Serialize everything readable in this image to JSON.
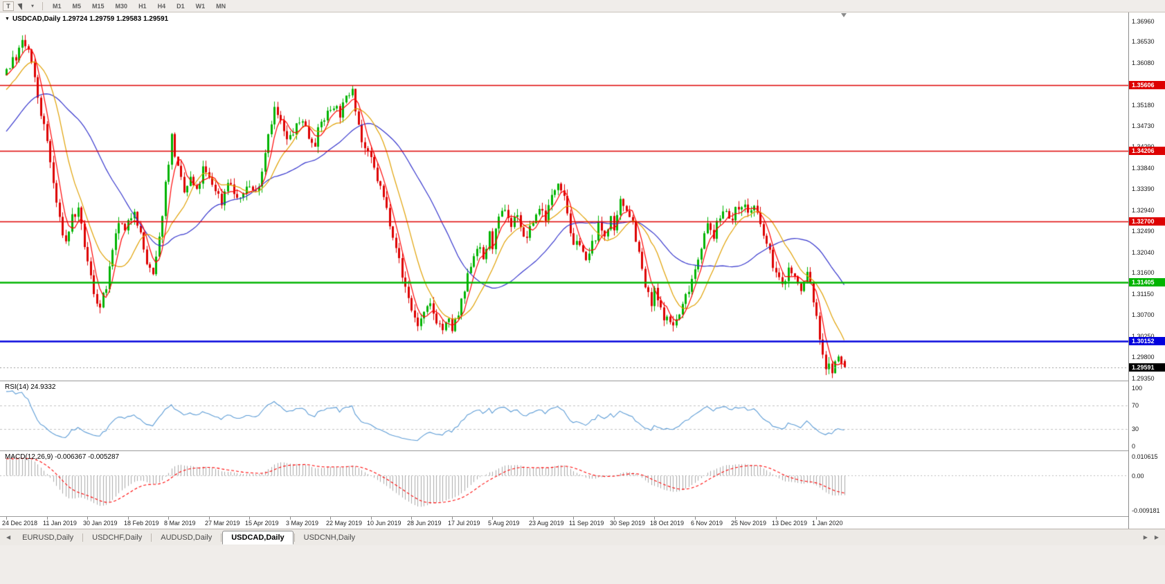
{
  "toolbar": {
    "text_tool_label": "T",
    "dropdown_caret": "▾",
    "timeframes": [
      "M1",
      "M5",
      "M15",
      "M30",
      "H1",
      "H4",
      "D1",
      "W1",
      "MN"
    ],
    "active_timeframe": "D1"
  },
  "chart": {
    "menu_caret": "▼",
    "title": "USDCAD,Daily 1.29724 1.29759 1.29583 1.29591",
    "symbol": "USDCAD",
    "period": "Daily",
    "open": "1.29724",
    "high": "1.29759",
    "low": "1.29583",
    "close": "1.29591"
  },
  "panes": {
    "rsi_label": "RSI(14) 24.9332",
    "macd_label": "MACD(12,26,9) -0.006367 -0.005287"
  },
  "price_axis": {
    "ticks": [
      "1.36960",
      "1.36530",
      "1.36080",
      "1.35630",
      "1.35180",
      "1.34730",
      "1.34290",
      "1.33840",
      "1.33390",
      "1.32940",
      "1.32490",
      "1.32040",
      "1.31600",
      "1.31150",
      "1.30700",
      "1.30250",
      "1.29800",
      "1.29350"
    ],
    "badges": [
      {
        "label": "1.35606",
        "price": 1.35606,
        "color": "#dd0000"
      },
      {
        "label": "1.34206",
        "price": 1.34206,
        "color": "#dd0000"
      },
      {
        "label": "1.32700",
        "price": 1.327,
        "color": "#dd0000"
      },
      {
        "label": "1.31405",
        "price": 1.31405,
        "color": "#00b400"
      },
      {
        "label": "1.30152",
        "price": 1.30152,
        "color": "#0000dd"
      },
      {
        "label": "1.29591",
        "price": 1.29591,
        "color": "#000000"
      }
    ]
  },
  "rsi_axis": [
    "100",
    "70",
    "30",
    "0"
  ],
  "macd_axis": [
    "0.010615",
    "0.00",
    "-0.009181"
  ],
  "date_axis": [
    "24 Dec 2018",
    "11 Jan 2019",
    "30 Jan 2019",
    "18 Feb 2019",
    "8 Mar 2019",
    "27 Mar 2019",
    "15 Apr 2019",
    "3 May 2019",
    "22 May 2019",
    "10 Jun 2019",
    "28 Jun 2019",
    "17 Jul 2019",
    "5 Aug 2019",
    "23 Aug 2019",
    "11 Sep 2019",
    "30 Sep 2019",
    "18 Oct 2019",
    "6 Nov 2019",
    "25 Nov 2019",
    "13 Dec 2019",
    "1 Jan 2020"
  ],
  "tabs": {
    "scroll_left": "◀",
    "scroll_right": "▶",
    "items": [
      {
        "label": "EURUSD,Daily",
        "active": false
      },
      {
        "label": "USDCHF,Daily",
        "active": false
      },
      {
        "label": "AUDUSD,Daily",
        "active": false
      },
      {
        "label": "USDCAD,Daily",
        "active": true
      },
      {
        "label": "USDCNH,Daily",
        "active": false
      }
    ]
  },
  "chart_data": {
    "type": "candlestick",
    "title": "USDCAD Daily",
    "seed": 7,
    "candles_visible": 270,
    "candles_per_date_label": 13,
    "up_color": "#00b300",
    "down_color": "#dd0000",
    "last_candle": {
      "open": 1.29724,
      "high": 1.29759,
      "low": 1.29583,
      "close": 1.29591
    },
    "current_price": 1.29591,
    "price_path_anchors": [
      [
        -45,
        1.324
      ],
      [
        -30,
        1.334
      ],
      [
        -15,
        1.348
      ],
      [
        -5,
        1.356
      ],
      [
        0,
        1.3595
      ],
      [
        3,
        1.362
      ],
      [
        5,
        1.365
      ],
      [
        7,
        1.3635
      ],
      [
        9,
        1.357
      ],
      [
        11,
        1.35
      ],
      [
        13,
        1.344
      ],
      [
        15,
        1.335
      ],
      [
        17,
        1.327
      ],
      [
        19,
        1.3225
      ],
      [
        21,
        1.328
      ],
      [
        23,
        1.329
      ],
      [
        25,
        1.322
      ],
      [
        26,
        1.318
      ],
      [
        28,
        1.312
      ],
      [
        30,
        1.3085
      ],
      [
        32,
        1.313
      ],
      [
        34,
        1.32
      ],
      [
        36,
        1.327
      ],
      [
        38,
        1.3245
      ],
      [
        41,
        1.33
      ],
      [
        43,
        1.324
      ],
      [
        45,
        1.318
      ],
      [
        47,
        1.315
      ],
      [
        49,
        1.323
      ],
      [
        51,
        1.335
      ],
      [
        53,
        1.345
      ],
      [
        55,
        1.338
      ],
      [
        57,
        1.333
      ],
      [
        59,
        1.336
      ],
      [
        61,
        1.333
      ],
      [
        63,
        1.338
      ],
      [
        65,
        1.336
      ],
      [
        67,
        1.334
      ],
      [
        69,
        1.331
      ],
      [
        71,
        1.336
      ],
      [
        73,
        1.333
      ],
      [
        75,
        1.331
      ],
      [
        77,
        1.335
      ],
      [
        80,
        1.333
      ],
      [
        82,
        1.338
      ],
      [
        84,
        1.346
      ],
      [
        86,
        1.351
      ],
      [
        88,
        1.348
      ],
      [
        90,
        1.344
      ],
      [
        93,
        1.347
      ],
      [
        95,
        1.349
      ],
      [
        97,
        1.345
      ],
      [
        99,
        1.344
      ],
      [
        101,
        1.348
      ],
      [
        103,
        1.35
      ],
      [
        105,
        1.352
      ],
      [
        107,
        1.35
      ],
      [
        109,
        1.353
      ],
      [
        111,
        1.356
      ],
      [
        112,
        1.3515
      ],
      [
        114,
        1.344
      ],
      [
        116,
        1.341
      ],
      [
        117,
        1.34
      ],
      [
        119,
        1.336
      ],
      [
        121,
        1.332
      ],
      [
        123,
        1.327
      ],
      [
        125,
        1.322
      ],
      [
        127,
        1.315
      ],
      [
        129,
        1.311
      ],
      [
        130,
        1.308
      ],
      [
        132,
        1.305
      ],
      [
        134,
        1.307
      ],
      [
        136,
        1.309
      ],
      [
        138,
        1.306
      ],
      [
        140,
        1.304
      ],
      [
        142,
        1.3055
      ],
      [
        143,
        1.304
      ],
      [
        145,
        1.307
      ],
      [
        147,
        1.312
      ],
      [
        149,
        1.318
      ],
      [
        151,
        1.322
      ],
      [
        153,
        1.319
      ],
      [
        155,
        1.324
      ],
      [
        156,
        1.322
      ],
      [
        158,
        1.327
      ],
      [
        160,
        1.33
      ],
      [
        162,
        1.326
      ],
      [
        164,
        1.329
      ],
      [
        166,
        1.323
      ],
      [
        168,
        1.325
      ],
      [
        169,
        1.327
      ],
      [
        171,
        1.33
      ],
      [
        173,
        1.328
      ],
      [
        175,
        1.332
      ],
      [
        177,
        1.336
      ],
      [
        179,
        1.333
      ],
      [
        181,
        1.325
      ],
      [
        182,
        1.321
      ],
      [
        184,
        1.323
      ],
      [
        186,
        1.318
      ],
      [
        188,
        1.322
      ],
      [
        190,
        1.326
      ],
      [
        192,
        1.324
      ],
      [
        194,
        1.328
      ],
      [
        195,
        1.324
      ],
      [
        197,
        1.331
      ],
      [
        199,
        1.33
      ],
      [
        201,
        1.327
      ],
      [
        203,
        1.32
      ],
      [
        205,
        1.313
      ],
      [
        207,
        1.309
      ],
      [
        208,
        1.312
      ],
      [
        210,
        1.308
      ],
      [
        212,
        1.306
      ],
      [
        214,
        1.305
      ],
      [
        216,
        1.307
      ],
      [
        218,
        1.311
      ],
      [
        220,
        1.315
      ],
      [
        221,
        1.317
      ],
      [
        223,
        1.322
      ],
      [
        225,
        1.326
      ],
      [
        227,
        1.324
      ],
      [
        229,
        1.328
      ],
      [
        231,
        1.33
      ],
      [
        233,
        1.327
      ],
      [
        234,
        1.329
      ],
      [
        236,
        1.331
      ],
      [
        238,
        1.329
      ],
      [
        240,
        1.33
      ],
      [
        242,
        1.326
      ],
      [
        244,
        1.322
      ],
      [
        246,
        1.318
      ],
      [
        247,
        1.316
      ],
      [
        249,
        1.313
      ],
      [
        251,
        1.317
      ],
      [
        253,
        1.315
      ],
      [
        255,
        1.312
      ],
      [
        257,
        1.316
      ],
      [
        258,
        1.314
      ],
      [
        260,
        1.306
      ],
      [
        262,
        1.299
      ],
      [
        263,
        1.296
      ],
      [
        265,
        1.2955
      ],
      [
        267,
        1.2975
      ],
      [
        269,
        1.29591
      ]
    ],
    "moving_averages": [
      {
        "name": "MA fast",
        "period": 5,
        "color": "#ff0000"
      },
      {
        "name": "MA medium",
        "period": 13,
        "color": "#e0a000"
      },
      {
        "name": "MA slow",
        "period": 34,
        "color": "#3333cc"
      }
    ],
    "horizontal_lines": [
      {
        "price": 1.35606,
        "color": "#dd0000",
        "width": 1.5
      },
      {
        "price": 1.34206,
        "color": "#dd0000",
        "width": 1.5
      },
      {
        "price": 1.327,
        "color": "#dd0000",
        "width": 1.5
      },
      {
        "price": 1.31405,
        "color": "#00b400",
        "width": 2.5
      },
      {
        "price": 1.30152,
        "color": "#0000dd",
        "width": 2.5
      }
    ],
    "rsi": {
      "period": 14,
      "current": 24.9332,
      "levels": [
        70,
        30
      ],
      "range": [
        0,
        100
      ],
      "color": "#5b9bd5"
    },
    "macd": {
      "fast": 12,
      "slow": 26,
      "signal": 9,
      "macd_value": -0.006367,
      "signal_value": -0.005287,
      "scale_max": 0.010615,
      "scale_min": -0.009181,
      "histogram_color": "#a8a8a8",
      "signal_color": "#ff0000"
    }
  }
}
